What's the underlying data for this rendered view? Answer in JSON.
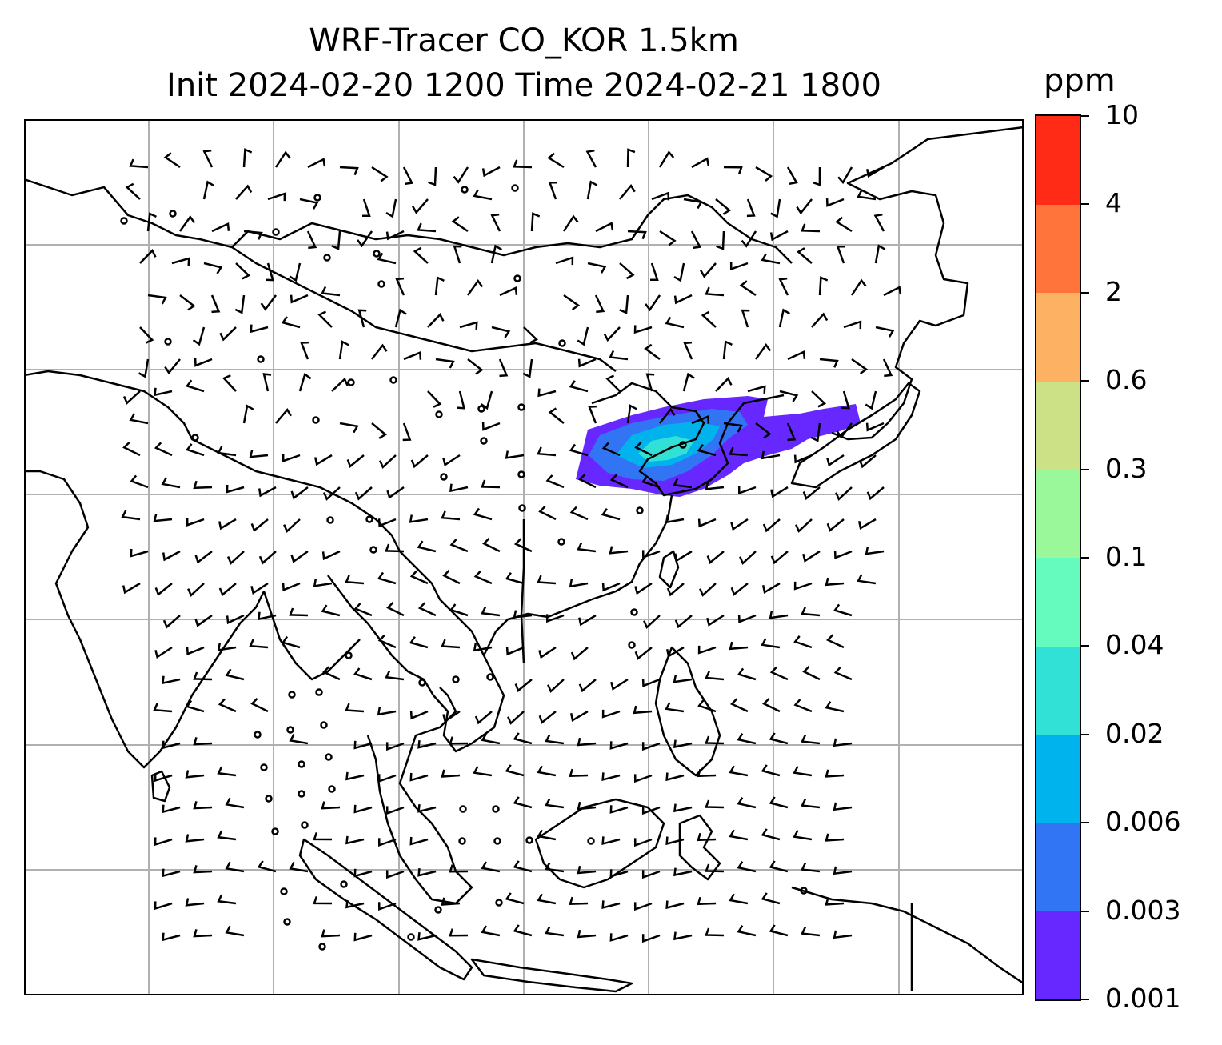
{
  "title": {
    "line1": "WRF-Tracer CO_KOR 1.5km",
    "line2": "Init 2024-02-20 1200 Time 2024-02-21 1800"
  },
  "colorbar": {
    "unit": "ppm",
    "levels": [
      "0.001",
      "0.003",
      "0.006",
      "0.02",
      "0.04",
      "0.1",
      "0.3",
      "0.6",
      "2",
      "4",
      "10"
    ],
    "colors": [
      "#6628FF",
      "#3275F4",
      "#00B3EC",
      "#32E1D5",
      "#66FBBE",
      "#9BF89A",
      "#CCE186",
      "#FCB262",
      "#FF743A",
      "#FF2B16"
    ]
  },
  "map": {
    "gridlines": true,
    "gridline_color": "#b0b0b0",
    "coastline_color": "#000000",
    "plume_colors": [
      "#6628FF",
      "#3275F4",
      "#00B3EC",
      "#32E1D5"
    ]
  }
}
